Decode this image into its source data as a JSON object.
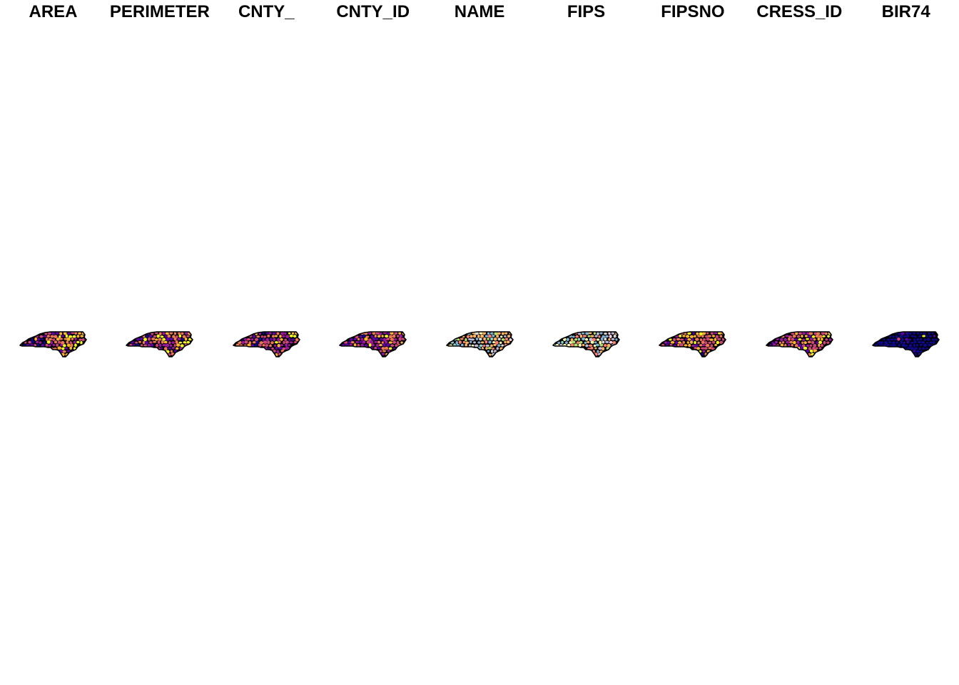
{
  "figure": {
    "type": "small-multiples choropleth",
    "region": "North Carolina counties"
  },
  "panels": [
    {
      "title": "AREA",
      "palette": [
        "#0d0887",
        "#5c01a6",
        "#9c179e",
        "#cc4778",
        "#ed7953",
        "#fdb42f",
        "#f0f921"
      ],
      "bias": 0.55
    },
    {
      "title": "PERIMETER",
      "palette": [
        "#0d0887",
        "#5c01a6",
        "#9c179e",
        "#cc4778",
        "#ed7953",
        "#fdb42f",
        "#f0f921"
      ],
      "bias": 0.45
    },
    {
      "title": "CNTY_",
      "palette": [
        "#0d0887",
        "#5c01a6",
        "#9c179e",
        "#cc4778",
        "#ed7953",
        "#fdb42f",
        "#f0f921"
      ],
      "bias": 0.4
    },
    {
      "title": "CNTY_ID",
      "palette": [
        "#0d0887",
        "#5c01a6",
        "#9c179e",
        "#cc4778",
        "#ed7953",
        "#fdb42f",
        "#f0f921"
      ],
      "bias": 0.4
    },
    {
      "title": "NAME",
      "palette": [
        "#8dd3c7",
        "#ffffb3",
        "#bebada",
        "#fb8072",
        "#80b1d3",
        "#fdb462",
        "#b3de69",
        "#fccde5",
        "#d9d9d9"
      ],
      "bias": 0.5
    },
    {
      "title": "FIPS",
      "palette": [
        "#8dd3c7",
        "#ffffb3",
        "#bebada",
        "#fb8072",
        "#80b1d3",
        "#fdb462",
        "#b3de69",
        "#fccde5",
        "#d9d9d9"
      ],
      "bias": 0.5
    },
    {
      "title": "FIPSNO",
      "palette": [
        "#0d0887",
        "#5c01a6",
        "#9c179e",
        "#cc4778",
        "#ed7953",
        "#fdb42f",
        "#f0f921"
      ],
      "bias": 0.6
    },
    {
      "title": "CRESS_ID",
      "palette": [
        "#0d0887",
        "#5c01a6",
        "#9c179e",
        "#cc4778",
        "#ed7953",
        "#fdb42f",
        "#f0f921"
      ],
      "bias": 0.65
    },
    {
      "title": "BIR74",
      "palette": [
        "#0d0887",
        "#0d0887",
        "#0d0887",
        "#2a0593",
        "#5c01a6",
        "#cc4778",
        "#f0f921"
      ],
      "bias": 0.1
    }
  ]
}
